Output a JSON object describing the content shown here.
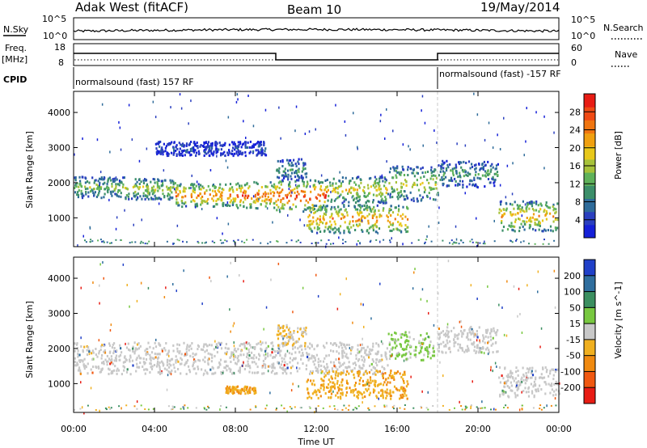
{
  "header": {
    "station": "Adak West (fitACF)",
    "beam": "Beam 10",
    "date": "19/May/2014"
  },
  "top_panels": {
    "nsky_label": "N.Sky",
    "nsky_ticks": [
      "10^5",
      "10^0"
    ],
    "nsearch_label": "N.Search",
    "nsearch_ticks": [
      "10^5",
      "10^0"
    ],
    "freq_label": "Freq.",
    "freq_unit": "[MHz]",
    "freq_ticks": [
      "18",
      "8"
    ],
    "nave_label": "Nave",
    "nave_ticks": [
      "60",
      "0"
    ],
    "cpid_label": "CPID",
    "cpid_segments": [
      "normalsound (fast) 157 RF",
      "normalsound (fast) -157 RF"
    ]
  },
  "chart_data": [
    {
      "type": "heatmap",
      "name": "power",
      "ylabel": "Slant Range [km]",
      "xlabel": "",
      "x_ticks": [
        "00:00",
        "04:00",
        "08:00",
        "12:00",
        "16:00",
        "20:00",
        "00:00"
      ],
      "xlim_hours": [
        0,
        24
      ],
      "y_ticks": [
        1000,
        2000,
        3000,
        4000
      ],
      "ylim": [
        180,
        4600
      ],
      "colorbar": {
        "label": "Power [dB]",
        "ticks": [
          4,
          8,
          12,
          16,
          20,
          24,
          28
        ],
        "range": [
          0,
          32
        ],
        "colors": [
          "#1520d8",
          "#2a3fbf",
          "#2e6b9a",
          "#3c8f6a",
          "#5fb25a",
          "#a7c23a",
          "#e8c81a",
          "#f0a010",
          "#f07510",
          "#f04a14",
          "#e81c14"
        ]
      },
      "bands": [
        {
          "t0": 0.0,
          "t1": 2.5,
          "r0": 1600,
          "r1": 2200,
          "level": 0.45
        },
        {
          "t0": 2.5,
          "t1": 5.0,
          "r0": 1550,
          "r1": 2150,
          "level": 0.55
        },
        {
          "t0": 5.0,
          "t1": 8.0,
          "r0": 1350,
          "r1": 2000,
          "level": 0.8
        },
        {
          "t0": 8.0,
          "t1": 10.0,
          "r0": 1300,
          "r1": 2050,
          "level": 0.85
        },
        {
          "t0": 10.0,
          "t1": 12.5,
          "r0": 1200,
          "r1": 2100,
          "level": 0.9
        },
        {
          "t0": 12.5,
          "t1": 15.5,
          "r0": 1450,
          "r1": 2200,
          "level": 0.6
        },
        {
          "t0": 15.5,
          "t1": 18.0,
          "r0": 1500,
          "r1": 2500,
          "level": 0.55
        },
        {
          "t0": 11.5,
          "t1": 16.5,
          "r0": 600,
          "r1": 1400,
          "level": 0.75
        },
        {
          "t0": 10.0,
          "t1": 11.5,
          "r0": 2100,
          "r1": 2700,
          "level": 0.35
        },
        {
          "t0": 18.0,
          "t1": 21.0,
          "r0": 1900,
          "r1": 2650,
          "level": 0.35
        },
        {
          "t0": 21.0,
          "t1": 24.0,
          "r0": 650,
          "r1": 1500,
          "level": 0.7
        },
        {
          "t0": 4.0,
          "t1": 9.5,
          "r0": 2800,
          "r1": 3200,
          "level": 0.15
        }
      ]
    },
    {
      "type": "heatmap",
      "name": "velocity",
      "ylabel": "Slant Range [km]",
      "xlabel": "Time UT",
      "x_ticks": [
        "00:00",
        "04:00",
        "08:00",
        "12:00",
        "16:00",
        "20:00",
        "00:00"
      ],
      "xlim_hours": [
        0,
        24
      ],
      "y_ticks": [
        1000,
        2000,
        3000,
        4000
      ],
      "ylim": [
        180,
        4600
      ],
      "colorbar": {
        "label": "Velocity [m s^-1]",
        "ticks": [
          "200",
          "100",
          "50",
          "15",
          "-15",
          "-50",
          "-100",
          "-200"
        ],
        "colors": [
          "#2040c8",
          "#2f6e9e",
          "#3b8f60",
          "#78c840",
          "#c8c8c8",
          "#f0b020",
          "#f08a10",
          "#f05810",
          "#e81c14"
        ]
      },
      "bands": [
        {
          "t0": 0.0,
          "t1": 10.0,
          "r0": 1300,
          "r1": 2200,
          "class": "ground"
        },
        {
          "t0": 10.0,
          "t1": 15.5,
          "r0": 1300,
          "r1": 2200,
          "class": "ground"
        },
        {
          "t0": 15.5,
          "t1": 17.8,
          "r0": 1700,
          "r1": 2500,
          "class": "positive"
        },
        {
          "t0": 11.5,
          "t1": 16.5,
          "r0": 600,
          "r1": 1400,
          "class": "negative"
        },
        {
          "t0": 10.0,
          "t1": 11.5,
          "r0": 2100,
          "r1": 2700,
          "class": "mixed"
        },
        {
          "t0": 18.0,
          "t1": 21.0,
          "r0": 1900,
          "r1": 2650,
          "class": "ground"
        },
        {
          "t0": 21.0,
          "t1": 24.0,
          "r0": 650,
          "r1": 1500,
          "class": "ground"
        },
        {
          "t0": 7.5,
          "t1": 9.0,
          "r0": 750,
          "r1": 950,
          "class": "negative"
        }
      ]
    }
  ]
}
